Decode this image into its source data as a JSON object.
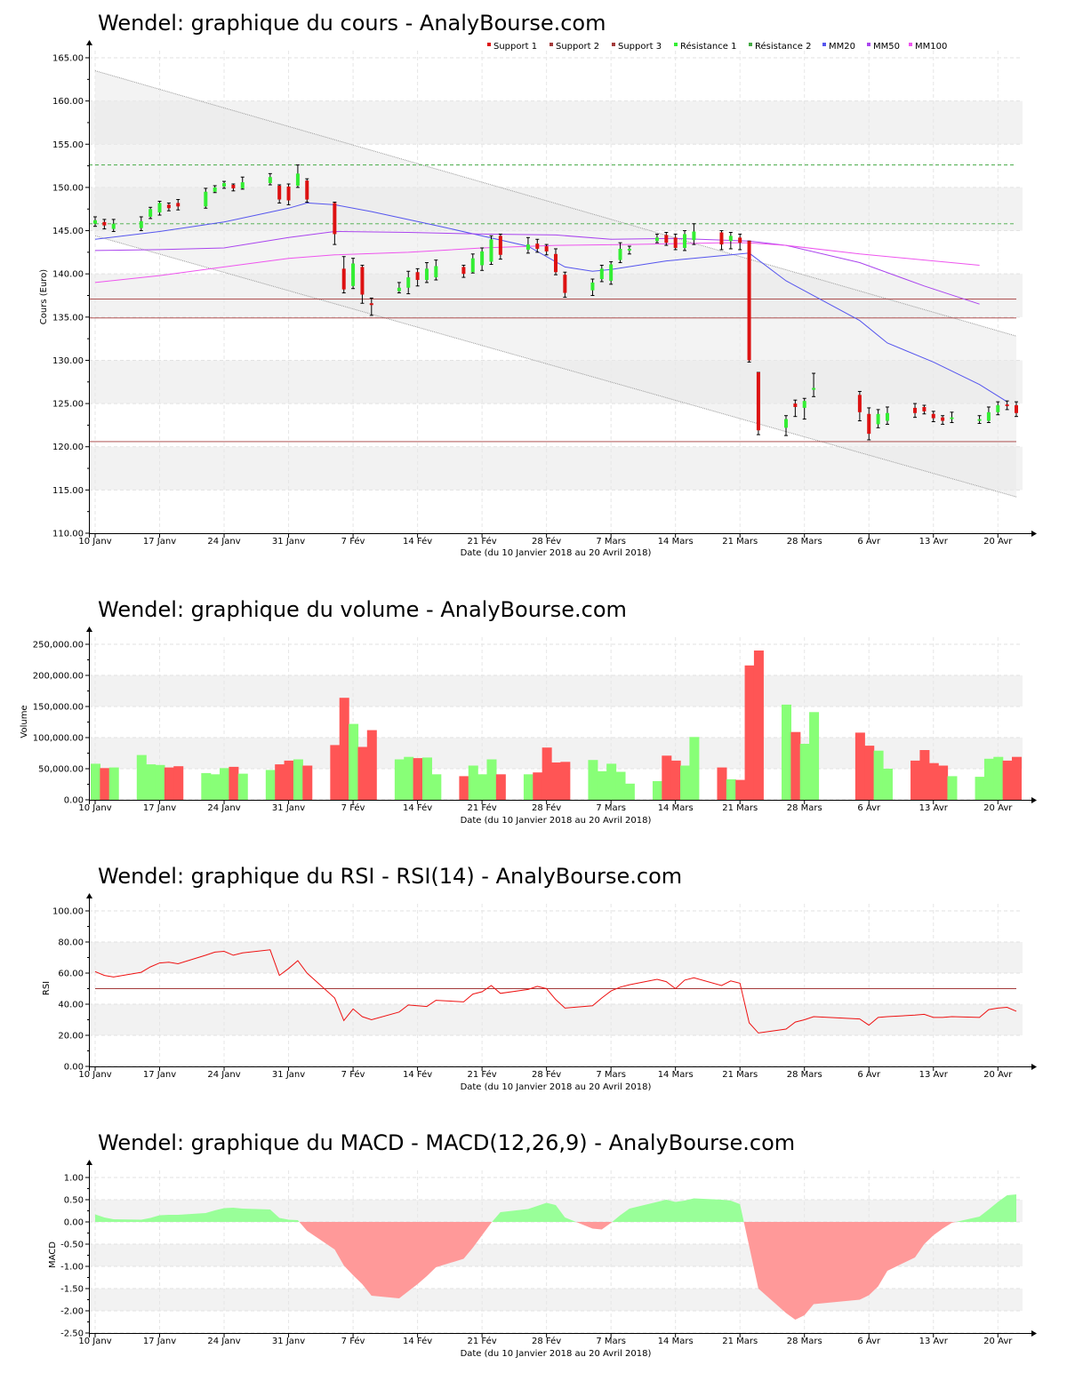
{
  "site": "AnalyBourse.com",
  "colors": {
    "up": "#33ee33",
    "down": "#dd1111",
    "vol_up": "#88ff77",
    "vol_down": "#ff5555",
    "support": "#a33a3a",
    "resistance": "#44aa44",
    "mm20": "#5555ee",
    "mm50": "#aa44ee",
    "mm100": "#ee55ee",
    "rsi": "#ee1111",
    "macd_pos": "#99ff99",
    "macd_neg": "#ff9999",
    "band_fill": "#f2f2f2"
  },
  "date_ticks": [
    "10 Janv",
    "17 Janv",
    "24 Janv",
    "31 Janv",
    "7 Fév",
    "14 Fév",
    "21 Fév",
    "28 Fév",
    "7 Mars",
    "14 Mars",
    "21 Mars",
    "28 Mars",
    "6 Avr",
    "13 Avr",
    "20 Avr"
  ],
  "chart_data": [
    {
      "id": "price",
      "type": "candlestick",
      "title": "Wendel: graphique du cours - AnalyBourse.com",
      "ylabel": "Cours (Euro)",
      "xlabel": "Date (du 10 Janvier 2018 au 20 Avril 2018)",
      "ylim": [
        110,
        165
      ],
      "yticks": [
        "110.00",
        "115.00",
        "120.00",
        "125.00",
        "130.00",
        "135.00",
        "140.00",
        "145.00",
        "150.00",
        "155.00",
        "160.00",
        "165.00"
      ],
      "legend": [
        "Support 1",
        "Support 2",
        "Support 3",
        "Résistance 1",
        "Résistance 2",
        "MM20",
        "MM50",
        "MM100"
      ],
      "levels": {
        "support1": 137.1,
        "support2": 134.9,
        "support3": 120.6,
        "resistance1": 145.8,
        "resistance2": 152.6
      },
      "channel": {
        "upper": [
          163.5,
          132.8
        ],
        "lower": [
          144.4,
          114.2
        ]
      },
      "candles": [
        {
          "d": "2018-01-10",
          "o": 145.8,
          "c": 146.2,
          "h": 146.6,
          "l": 145.5
        },
        {
          "d": "2018-01-11",
          "o": 146.0,
          "c": 145.6,
          "h": 146.3,
          "l": 145.2
        },
        {
          "d": "2018-01-12",
          "o": 145.2,
          "c": 145.8,
          "h": 146.3,
          "l": 144.9
        },
        {
          "d": "2018-01-15",
          "o": 145.3,
          "c": 146.1,
          "h": 146.6,
          "l": 145.0
        },
        {
          "d": "2018-01-16",
          "o": 146.6,
          "c": 147.5,
          "h": 147.7,
          "l": 146.4
        },
        {
          "d": "2018-01-17",
          "o": 147.1,
          "c": 148.2,
          "h": 148.4,
          "l": 146.8
        },
        {
          "d": "2018-01-18",
          "o": 148.0,
          "c": 147.6,
          "h": 148.2,
          "l": 147.3
        },
        {
          "d": "2018-01-19",
          "o": 148.2,
          "c": 147.8,
          "h": 148.6,
          "l": 147.4
        },
        {
          "d": "2018-01-22",
          "o": 147.8,
          "c": 149.5,
          "h": 149.9,
          "l": 147.6
        },
        {
          "d": "2018-01-23",
          "o": 149.5,
          "c": 150.0,
          "h": 150.2,
          "l": 149.4
        },
        {
          "d": "2018-01-24",
          "o": 150.1,
          "c": 150.5,
          "h": 150.7,
          "l": 149.9
        },
        {
          "d": "2018-01-25",
          "o": 150.3,
          "c": 149.9,
          "h": 150.4,
          "l": 149.6
        },
        {
          "d": "2018-01-26",
          "o": 149.9,
          "c": 150.6,
          "h": 151.2,
          "l": 149.8
        },
        {
          "d": "2018-01-29",
          "o": 150.5,
          "c": 151.2,
          "h": 151.6,
          "l": 150.3
        },
        {
          "d": "2018-01-30",
          "o": 150.2,
          "c": 148.6,
          "h": 150.3,
          "l": 148.2
        },
        {
          "d": "2018-01-31",
          "o": 150.1,
          "c": 148.5,
          "h": 150.4,
          "l": 148.0
        },
        {
          "d": "2018-02-01",
          "o": 150.2,
          "c": 151.6,
          "h": 152.6,
          "l": 150.0
        },
        {
          "d": "2018-02-02",
          "o": 150.8,
          "c": 148.6,
          "h": 151.0,
          "l": 148.3
        },
        {
          "d": "2018-02-05",
          "o": 148.2,
          "c": 144.6,
          "h": 148.3,
          "l": 143.4
        },
        {
          "d": "2018-02-06",
          "o": 140.6,
          "c": 138.2,
          "h": 142.0,
          "l": 137.8
        },
        {
          "d": "2018-02-07",
          "o": 138.6,
          "c": 141.2,
          "h": 141.8,
          "l": 138.3
        },
        {
          "d": "2018-02-08",
          "o": 140.8,
          "c": 137.6,
          "h": 141.0,
          "l": 136.6
        },
        {
          "d": "2018-02-09",
          "o": 136.6,
          "c": 136.4,
          "h": 137.2,
          "l": 135.2
        },
        {
          "d": "2018-02-12",
          "o": 138.0,
          "c": 138.4,
          "h": 139.0,
          "l": 137.8
        },
        {
          "d": "2018-02-13",
          "o": 138.4,
          "c": 139.6,
          "h": 140.3,
          "l": 137.7
        },
        {
          "d": "2018-02-14",
          "o": 140.2,
          "c": 139.3,
          "h": 140.6,
          "l": 138.6
        },
        {
          "d": "2018-02-15",
          "o": 139.3,
          "c": 140.6,
          "h": 141.3,
          "l": 139.0
        },
        {
          "d": "2018-02-16",
          "o": 139.6,
          "c": 140.9,
          "h": 141.6,
          "l": 139.3
        },
        {
          "d": "2018-02-19",
          "o": 140.8,
          "c": 140.0,
          "h": 141.0,
          "l": 139.6
        },
        {
          "d": "2018-02-20",
          "o": 140.2,
          "c": 141.8,
          "h": 142.3,
          "l": 140.1
        },
        {
          "d": "2018-02-21",
          "o": 141.0,
          "c": 142.6,
          "h": 143.0,
          "l": 140.4
        },
        {
          "d": "2018-02-22",
          "o": 141.4,
          "c": 144.0,
          "h": 144.4,
          "l": 141.1
        },
        {
          "d": "2018-02-23",
          "o": 144.4,
          "c": 142.2,
          "h": 144.6,
          "l": 141.7
        },
        {
          "d": "2018-02-26",
          "o": 142.8,
          "c": 143.4,
          "h": 144.2,
          "l": 142.4
        },
        {
          "d": "2018-02-27",
          "o": 143.5,
          "c": 142.9,
          "h": 144.0,
          "l": 142.5
        },
        {
          "d": "2018-02-28",
          "o": 143.2,
          "c": 142.6,
          "h": 143.4,
          "l": 142.2
        },
        {
          "d": "2018-03-01",
          "o": 142.3,
          "c": 140.2,
          "h": 142.9,
          "l": 139.9
        },
        {
          "d": "2018-03-02",
          "o": 139.9,
          "c": 137.8,
          "h": 140.2,
          "l": 137.3
        },
        {
          "d": "2018-03-05",
          "o": 138.1,
          "c": 139.0,
          "h": 139.4,
          "l": 137.5
        },
        {
          "d": "2018-03-06",
          "o": 139.4,
          "c": 140.6,
          "h": 141.0,
          "l": 139.1
        },
        {
          "d": "2018-03-07",
          "o": 139.2,
          "c": 141.1,
          "h": 141.4,
          "l": 138.8
        },
        {
          "d": "2018-03-08",
          "o": 141.6,
          "c": 142.9,
          "h": 143.6,
          "l": 141.3
        },
        {
          "d": "2018-03-09",
          "o": 142.8,
          "c": 142.9,
          "h": 143.2,
          "l": 142.3
        },
        {
          "d": "2018-03-12",
          "o": 143.8,
          "c": 144.2,
          "h": 144.6,
          "l": 143.6
        },
        {
          "d": "2018-03-13",
          "o": 144.5,
          "c": 143.6,
          "h": 144.8,
          "l": 143.3
        },
        {
          "d": "2018-03-14",
          "o": 144.2,
          "c": 143.0,
          "h": 144.6,
          "l": 142.8
        },
        {
          "d": "2018-03-15",
          "o": 143.0,
          "c": 144.6,
          "h": 145.0,
          "l": 142.7
        },
        {
          "d": "2018-03-16",
          "o": 143.9,
          "c": 144.9,
          "h": 145.8,
          "l": 143.4
        },
        {
          "d": "2018-03-19",
          "o": 144.8,
          "c": 143.4,
          "h": 145.0,
          "l": 142.8
        },
        {
          "d": "2018-03-20",
          "o": 143.8,
          "c": 144.4,
          "h": 144.8,
          "l": 142.9
        },
        {
          "d": "2018-03-21",
          "o": 144.2,
          "c": 143.6,
          "h": 144.6,
          "l": 142.8
        },
        {
          "d": "2018-03-22",
          "o": 143.8,
          "c": 130.0,
          "h": 143.8,
          "l": 129.8
        },
        {
          "d": "2018-03-23",
          "o": 128.6,
          "c": 121.9,
          "h": 128.6,
          "l": 121.4
        },
        {
          "d": "2018-03-26",
          "o": 122.2,
          "c": 123.2,
          "h": 123.6,
          "l": 121.3
        },
        {
          "d": "2018-03-27",
          "o": 125.0,
          "c": 124.6,
          "h": 125.4,
          "l": 123.5
        },
        {
          "d": "2018-03-28",
          "o": 124.5,
          "c": 125.3,
          "h": 125.6,
          "l": 123.2
        },
        {
          "d": "2018-03-29",
          "o": 126.8,
          "c": 126.8,
          "h": 128.5,
          "l": 125.8
        },
        {
          "d": "2018-04-03",
          "o": 126.0,
          "c": 124.0,
          "h": 126.4,
          "l": 123.0
        },
        {
          "d": "2018-04-04",
          "o": 123.8,
          "c": 121.5,
          "h": 124.5,
          "l": 120.8
        },
        {
          "d": "2018-04-05",
          "o": 122.6,
          "c": 123.8,
          "h": 124.3,
          "l": 122.2
        },
        {
          "d": "2018-04-06",
          "o": 123.0,
          "c": 123.9,
          "h": 124.6,
          "l": 122.6
        },
        {
          "d": "2018-04-09",
          "o": 124.5,
          "c": 123.9,
          "h": 125.0,
          "l": 123.4
        },
        {
          "d": "2018-04-10",
          "o": 124.6,
          "c": 124.1,
          "h": 124.8,
          "l": 123.8
        },
        {
          "d": "2018-04-11",
          "o": 123.8,
          "c": 123.3,
          "h": 124.1,
          "l": 122.9
        },
        {
          "d": "2018-04-12",
          "o": 123.4,
          "c": 123.0,
          "h": 123.6,
          "l": 122.6
        },
        {
          "d": "2018-04-13",
          "o": 123.2,
          "c": 123.4,
          "h": 124.0,
          "l": 122.8
        },
        {
          "d": "2018-04-16",
          "o": 123.2,
          "c": 123.2,
          "h": 123.6,
          "l": 122.7
        },
        {
          "d": "2018-04-17",
          "o": 123.0,
          "c": 124.0,
          "h": 124.6,
          "l": 122.8
        },
        {
          "d": "2018-04-18",
          "o": 124.0,
          "c": 124.8,
          "h": 125.2,
          "l": 123.7
        },
        {
          "d": "2018-04-19",
          "o": 124.9,
          "c": 124.7,
          "h": 125.3,
          "l": 124.3
        },
        {
          "d": "2018-04-20",
          "o": 124.8,
          "c": 123.9,
          "h": 125.2,
          "l": 123.5
        }
      ],
      "mm20": [
        [
          0,
          144.0
        ],
        [
          5,
          144.9
        ],
        [
          10,
          146.0
        ],
        [
          15,
          147.6
        ],
        [
          17,
          148.2
        ],
        [
          18,
          148.0
        ],
        [
          22,
          147.2
        ],
        [
          27,
          145.6
        ],
        [
          33,
          143.2
        ],
        [
          37,
          140.8
        ],
        [
          38,
          140.3
        ],
        [
          40,
          140.5
        ],
        [
          44,
          141.5
        ],
        [
          49,
          142.2
        ],
        [
          51,
          142.4
        ],
        [
          53,
          139.2
        ],
        [
          57,
          134.6
        ],
        [
          60,
          132.0
        ],
        [
          63,
          129.8
        ],
        [
          66,
          127.2
        ],
        [
          69,
          125.2
        ],
        [
          71,
          124.2
        ]
      ],
      "mm50": [
        [
          0,
          142.7
        ],
        [
          5,
          142.8
        ],
        [
          10,
          143.0
        ],
        [
          15,
          144.2
        ],
        [
          18,
          144.9
        ],
        [
          24,
          144.8
        ],
        [
          30,
          144.6
        ],
        [
          36,
          144.5
        ],
        [
          40,
          144.0
        ],
        [
          45,
          144.1
        ],
        [
          51,
          143.8
        ],
        [
          53,
          143.3
        ],
        [
          57,
          141.3
        ],
        [
          62,
          138.6
        ],
        [
          66,
          136.5
        ],
        [
          71,
          134.5
        ]
      ],
      "mm100": [
        [
          0,
          139.0
        ],
        [
          5,
          139.8
        ],
        [
          10,
          140.8
        ],
        [
          15,
          141.8
        ],
        [
          18,
          142.2
        ],
        [
          24,
          142.5
        ],
        [
          30,
          143.0
        ],
        [
          36,
          143.3
        ],
        [
          42,
          143.4
        ],
        [
          48,
          143.6
        ],
        [
          51,
          143.6
        ],
        [
          53,
          143.3
        ],
        [
          57,
          142.3
        ],
        [
          62,
          141.6
        ],
        [
          66,
          141.0
        ],
        [
          71,
          139.7
        ]
      ]
    },
    {
      "id": "volume",
      "type": "bar",
      "title": "Wendel: graphique du volume - AnalyBourse.com",
      "ylabel": "Volume",
      "xlabel": "Date (du 10 Janvier 2018 au 20 Avril 2018)",
      "ylim": [
        0,
        250000
      ],
      "yticks": [
        "0.00",
        "50,000.00",
        "100,000.00",
        "150,000.00",
        "200,000.00",
        "250,000.00"
      ],
      "values": [
        58000,
        51000,
        52000,
        72000,
        57000,
        56000,
        52000,
        54000,
        43000,
        41000,
        51000,
        53000,
        42000,
        48000,
        57000,
        63000,
        65000,
        55000,
        88000,
        164000,
        122000,
        85000,
        112000,
        65000,
        69000,
        67000,
        68000,
        41000,
        38000,
        55000,
        41000,
        65000,
        41000,
        41000,
        44000,
        84000,
        60000,
        61000,
        64000,
        46000,
        58000,
        45000,
        26000,
        30000,
        71000,
        63000,
        55000,
        101000,
        52000,
        33000,
        32000,
        216000,
        240000,
        153000,
        109000,
        90000,
        141000,
        108000,
        87000,
        79000,
        50000,
        63000,
        80000,
        59000,
        55000,
        38000,
        37000,
        66000,
        69000,
        63000,
        69000
      ]
    },
    {
      "id": "rsi",
      "type": "line",
      "title": "Wendel: graphique du RSI - RSI(14) - AnalyBourse.com",
      "ylabel": "RSI",
      "xlabel": "Date (du 10 Janvier 2018 au 20 Avril 2018)",
      "ylim": [
        0,
        100
      ],
      "yticks": [
        "0.00",
        "20.00",
        "40.00",
        "60.00",
        "80.00",
        "100.00"
      ],
      "reference": 50,
      "values": [
        61.0,
        58.5,
        57.5,
        60.5,
        64.0,
        66.5,
        67.0,
        66.0,
        71.5,
        73.5,
        74.0,
        71.5,
        73.0,
        75.0,
        58.5,
        63.0,
        68.0,
        60.0,
        44.0,
        29.5,
        37.0,
        32.0,
        30.0,
        35.0,
        39.5,
        39.0,
        38.5,
        42.5,
        41.5,
        46.5,
        48.0,
        52.0,
        47.0,
        49.5,
        51.5,
        50.0,
        43.0,
        37.5,
        39.0,
        44.0,
        48.5,
        51.0,
        52.5,
        56.0,
        54.5,
        50.0,
        55.5,
        57.0,
        52.0,
        55.0,
        53.5,
        28.0,
        21.5,
        24.0,
        28.5,
        30.0,
        32.0,
        30.5,
        26.5,
        31.5,
        32.0,
        33.0,
        33.5,
        31.5,
        31.5,
        32.0,
        31.5,
        36.5,
        37.5,
        38.0,
        35.5
      ]
    },
    {
      "id": "macd",
      "type": "area",
      "title": "Wendel: graphique du MACD - MACD(12,26,9) - AnalyBourse.com",
      "ylabel": "MACD",
      "xlabel": "Date (du 10 Janvier 2018 au 20 Avril 2018)",
      "ylim": [
        -2.5,
        1.0
      ],
      "yticks": [
        "-2.50",
        "-2.00",
        "-1.50",
        "-1.00",
        "-0.50",
        "0.00",
        "0.50",
        "1.00"
      ],
      "values": [
        0.17,
        0.1,
        0.06,
        0.05,
        0.09,
        0.15,
        0.16,
        0.16,
        0.2,
        0.26,
        0.31,
        0.32,
        0.3,
        0.28,
        0.09,
        0.05,
        0.04,
        -0.2,
        -0.62,
        -0.98,
        -1.2,
        -1.4,
        -1.66,
        -1.72,
        -1.56,
        -1.4,
        -1.22,
        -1.02,
        -0.83,
        -0.58,
        -0.3,
        -0.02,
        0.22,
        0.29,
        0.36,
        0.43,
        0.38,
        0.1,
        -0.15,
        -0.17,
        -0.02,
        0.15,
        0.3,
        0.45,
        0.5,
        0.45,
        0.48,
        0.53,
        0.5,
        0.48,
        0.4,
        -0.55,
        -1.5,
        -2.05,
        -2.2,
        -2.1,
        -1.85,
        -1.75,
        -1.65,
        -1.45,
        -1.1,
        -0.8,
        -0.5,
        -0.3,
        -0.15,
        -0.02,
        0.12,
        0.28,
        0.45,
        0.6,
        0.62
      ]
    }
  ]
}
